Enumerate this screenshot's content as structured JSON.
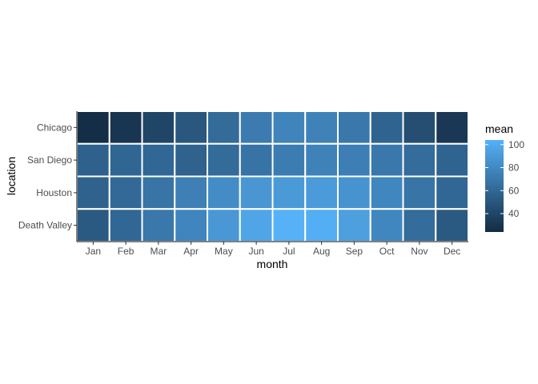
{
  "chart_data": {
    "type": "heatmap",
    "title": "",
    "xlabel": "month",
    "ylabel": "location",
    "x_categories": [
      "Jan",
      "Feb",
      "Mar",
      "Apr",
      "May",
      "Jun",
      "Jul",
      "Aug",
      "Sep",
      "Oct",
      "Nov",
      "Dec"
    ],
    "y_categories": [
      "Chicago",
      "San Diego",
      "Houston",
      "Death Valley"
    ],
    "values": [
      [
        26,
        30,
        40,
        50,
        62,
        72,
        77,
        76,
        70,
        58,
        45,
        32
      ],
      [
        56,
        59,
        60,
        57,
        62,
        67,
        73,
        76,
        74,
        70,
        63,
        58
      ],
      [
        57,
        61,
        68,
        75,
        82,
        88,
        90,
        91,
        86,
        79,
        68,
        60
      ],
      [
        52,
        60,
        70,
        78,
        89,
        97,
        104,
        102,
        93,
        79,
        63,
        52
      ]
    ],
    "legend": {
      "title": "mean",
      "ticks": [
        40,
        60,
        80,
        100
      ],
      "range": [
        24,
        104
      ],
      "color_low": "#132b43",
      "color_high": "#56b1f7",
      "placement": "right"
    },
    "grid": false
  }
}
